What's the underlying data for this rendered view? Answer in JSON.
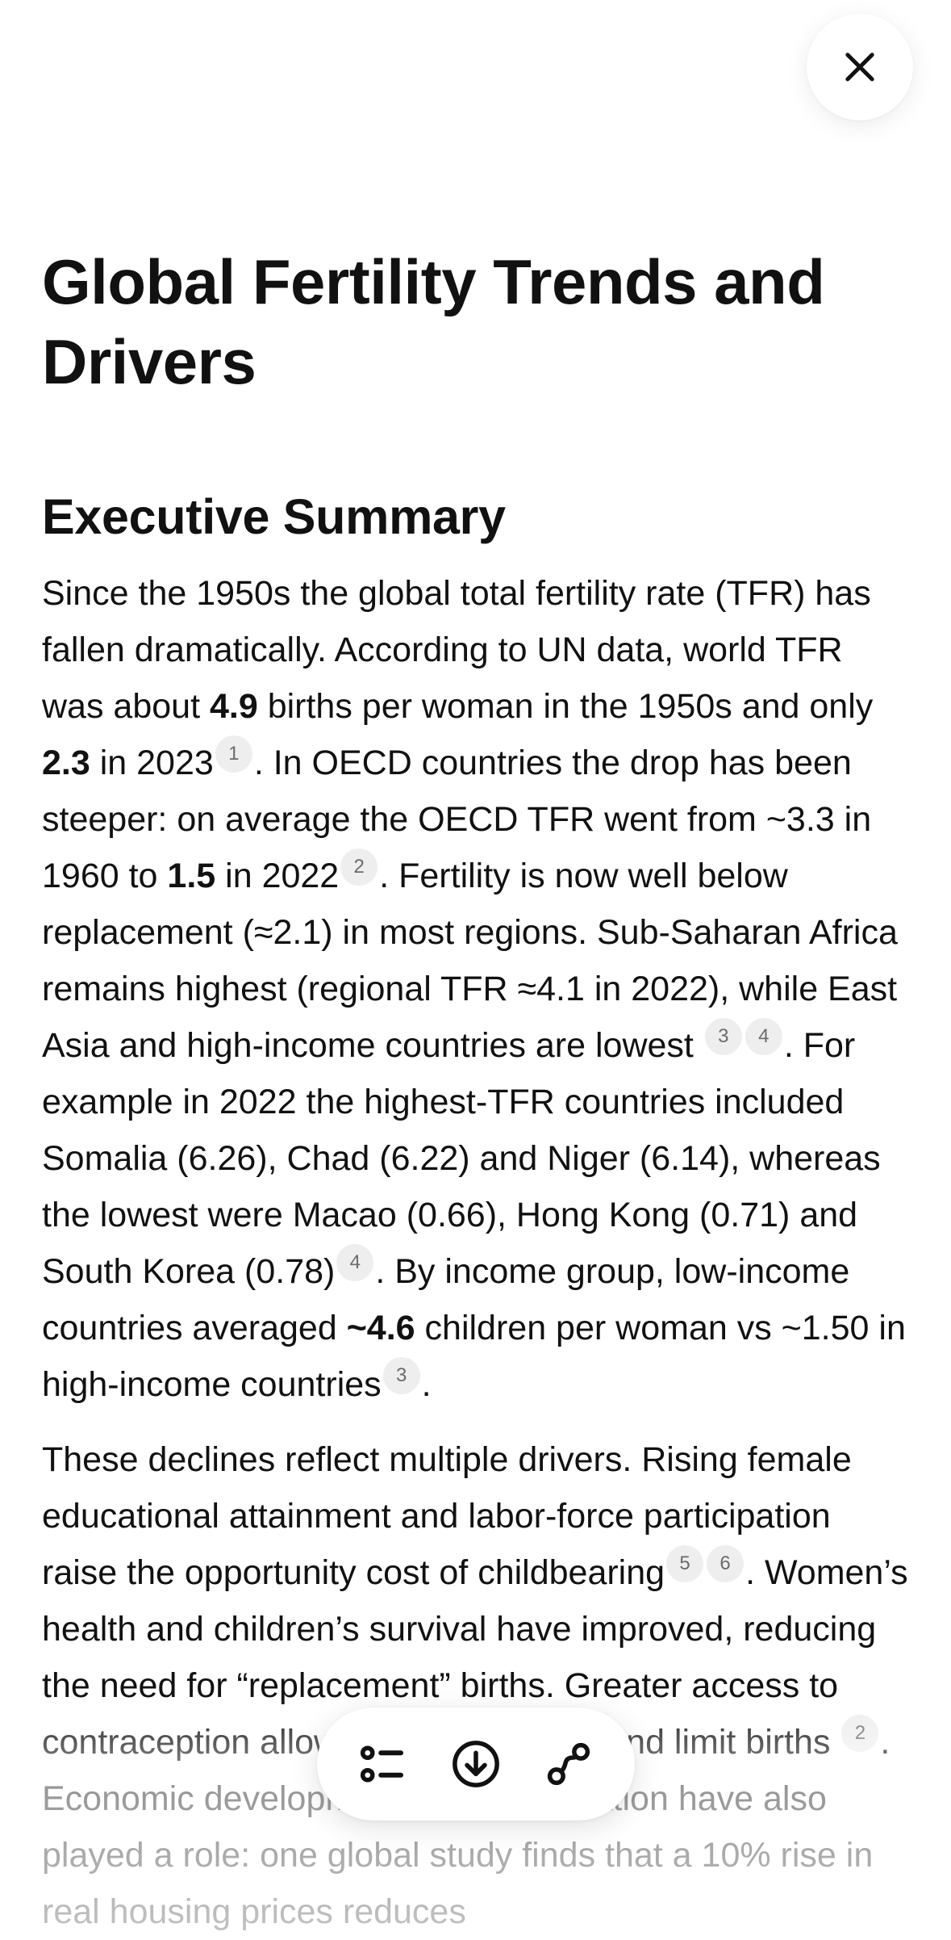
{
  "document": {
    "title": "Global Fertility Trends and Drivers",
    "section_heading": "Executive Summary",
    "paragraph1": {
      "t1": "Since the 1950s the global total fertility rate (TFR) has fallen dramatically. According to UN data, world TFR was about ",
      "b1": "4.9",
      "t2": " births per woman in the 1950s and only ",
      "b2": "2.3",
      "t3": " in 2023",
      "c1": "1",
      "t4": ". In OECD countries the drop has been steeper: on average the OECD TFR went from ~3.3 in 1960 to ",
      "b3": "1.5",
      "t5": " in 2022",
      "c2": "2",
      "t6": ". Fertility is now well below replacement (≈2.1) in most regions. Sub-Saharan Africa remains highest (regional TFR ≈4.1 in 2022), while East Asia and high-income countries are lowest ",
      "c3": "3",
      "c4": "4",
      "t7": ". For example in 2022 the highest-TFR countries included Somalia (6.26), Chad (6.22) and Niger (6.14), whereas the lowest were Macao (0.66), Hong Kong (0.71) and South Korea (0.78)",
      "c5": "4",
      "t8": ". By income group, low-income countries averaged ",
      "b4": "~4.6",
      "t9": " children per woman vs ~1.50 in high-income countries",
      "c6": "3",
      "t10": "."
    },
    "paragraph2": {
      "t1": "These declines reflect multiple drivers. Rising female educational attainment and labor-force participation raise the opportunity cost of childbearing",
      "c1": "5",
      "c2": "6",
      "t2": ". Women’s health and children’s survival have improved, reducing the need for “replacement” births. Greater access to contraception allows families to time and limit births ",
      "c3": "2",
      "t3": ". Economic development and urbanization have also played a role: one global study finds that a 10% rise in real housing prices reduces"
    }
  },
  "icons": {
    "close": "close-icon",
    "outline": "list-outline-icon",
    "download": "download-icon",
    "share": "link-icon"
  },
  "colors": {
    "text": "#111111",
    "citation_bg": "#eeeeee",
    "citation_text": "#6b6b6b",
    "background": "#ffffff"
  }
}
